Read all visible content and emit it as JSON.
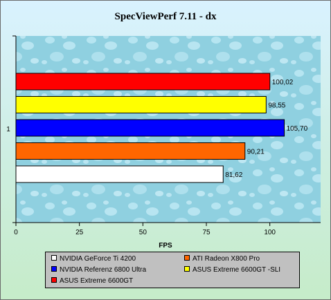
{
  "chart_data": {
    "type": "bar",
    "orientation": "horizontal",
    "title": "SpecViewPerf 7.11 - dx",
    "xlabel": "FPS",
    "ylabel": "",
    "category_label": "1",
    "xlim": [
      0,
      120
    ],
    "xticks": [
      0,
      25,
      50,
      75,
      100
    ],
    "grid": false,
    "series": [
      {
        "name": "NVIDIA GeForce Ti 4200",
        "value": 81.62,
        "label": "81,62",
        "color": "#ffffff"
      },
      {
        "name": "ATI Radeon X800 Pro",
        "value": 90.21,
        "label": "90,21",
        "color": "#ff6600"
      },
      {
        "name": "NVIDIA  Referenz 6800 Ultra",
        "value": 105.7,
        "label": "105,70",
        "color": "#0000ff"
      },
      {
        "name": "ASUS Extreme 6600GT -SLI",
        "value": 98.55,
        "label": "98,55",
        "color": "#ffff00"
      },
      {
        "name": "ASUS Extreme 6600GT",
        "value": 100.02,
        "label": "100,02",
        "color": "#ff0000"
      }
    ],
    "legend_placement": "bottom"
  }
}
